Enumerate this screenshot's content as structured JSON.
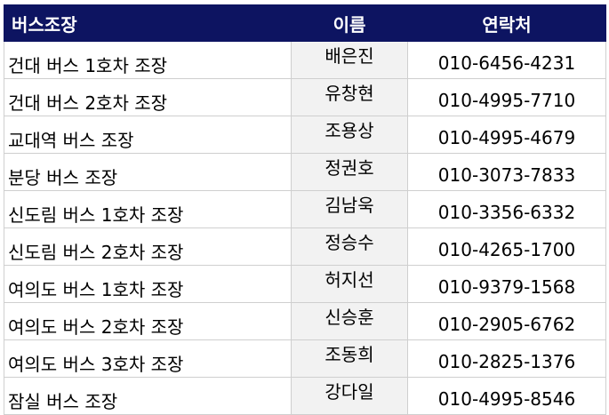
{
  "table": {
    "headers": {
      "role": "버스조장",
      "name": "이름",
      "phone": "연락처"
    },
    "rows": [
      {
        "role": "건대 버스 1호차 조장",
        "name": "배은진",
        "phone": "010-6456-4231"
      },
      {
        "role": "건대 버스 2호차 조장",
        "name": "유창현",
        "phone": "010-4995-7710"
      },
      {
        "role": "교대역 버스 조장",
        "name": "조용상",
        "phone": "010-4995-4679"
      },
      {
        "role": "분당 버스 조장",
        "name": "정권호",
        "phone": "010-3073-7833"
      },
      {
        "role": "신도림 버스 1호차 조장",
        "name": "김남욱",
        "phone": "010-3356-6332"
      },
      {
        "role": "신도림 버스 2호차 조장",
        "name": "정승수",
        "phone": "010-4265-1700"
      },
      {
        "role": "여의도 버스 1호차 조장",
        "name": "허지선",
        "phone": "010-9379-1568"
      },
      {
        "role": "여의도 버스 2호차 조장",
        "name": "신승훈",
        "phone": "010-2905-6762"
      },
      {
        "role": "여의도 버스 3호차 조장",
        "name": "조동희",
        "phone": "010-2825-1376"
      },
      {
        "role": "잠실 버스 조장",
        "name": "강다일",
        "phone": "010-4995-8546"
      }
    ]
  },
  "colors": {
    "header_bg": "#0d1461",
    "header_text": "#ffffff",
    "name_col_bg": "#f2f2f2",
    "grid": "#cfcfcf"
  }
}
